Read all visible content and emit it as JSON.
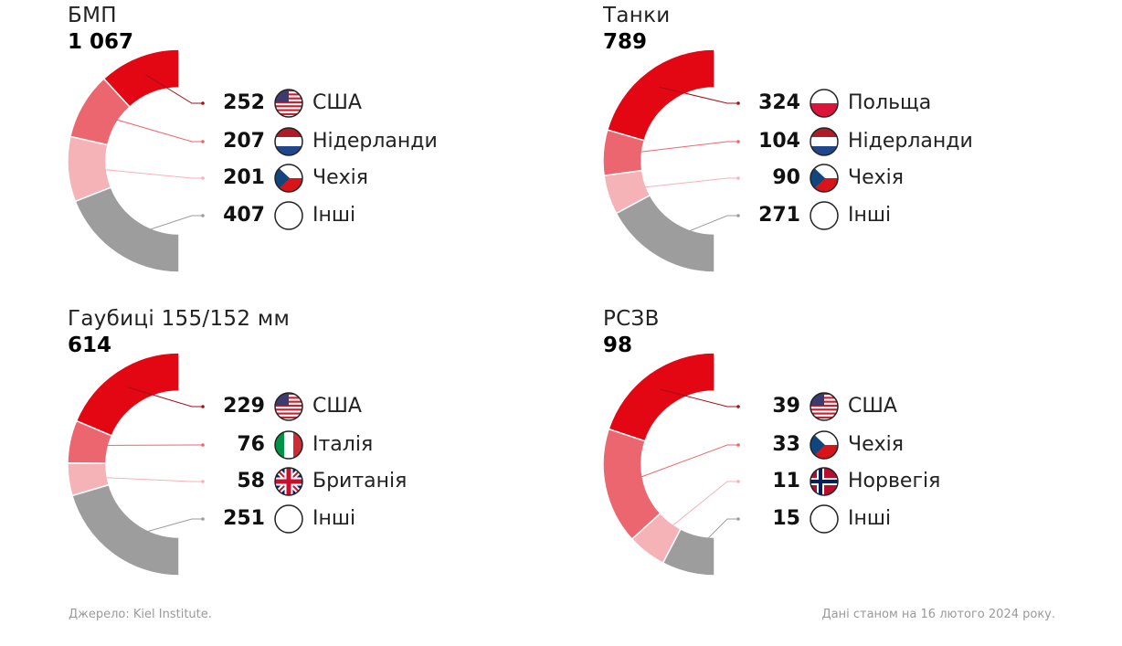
{
  "chart_data": [
    {
      "type": "pie",
      "variant": "half-donut",
      "title": "БМП",
      "total": "1 067",
      "categories": [
        "США",
        "Нідерланди",
        "Чехія",
        "Інші"
      ],
      "values": [
        252,
        207,
        201,
        407
      ],
      "flags": [
        "usa",
        "nl",
        "cz",
        "none"
      ]
    },
    {
      "type": "pie",
      "variant": "half-donut",
      "title": "Танки",
      "total": "789",
      "categories": [
        "Польща",
        "Нідерланди",
        "Чехія",
        "Інші"
      ],
      "values": [
        324,
        104,
        90,
        271
      ],
      "flags": [
        "pl",
        "nl",
        "cz",
        "none"
      ]
    },
    {
      "type": "pie",
      "variant": "half-donut",
      "title": "Гаубиці 155/152 мм",
      "total": "614",
      "categories": [
        "США",
        "Італія",
        "Британія",
        "Інші"
      ],
      "values": [
        229,
        76,
        58,
        251
      ],
      "flags": [
        "usa",
        "it",
        "gb",
        "none"
      ]
    },
    {
      "type": "pie",
      "variant": "half-donut",
      "title": "РСЗВ",
      "total": "98",
      "categories": [
        "США",
        "Чехія",
        "Норвегія",
        "Інші"
      ],
      "values": [
        39,
        33,
        11,
        15
      ],
      "flags": [
        "usa",
        "cz",
        "no",
        "none"
      ]
    }
  ],
  "colors": [
    "#e30613",
    "#ec6670",
    "#f5b3b8",
    "#9d9d9d"
  ],
  "footer": {
    "source": "Джерело: Kiel Institute.",
    "date": "Дані станом на 16 лютого 2024 року."
  }
}
